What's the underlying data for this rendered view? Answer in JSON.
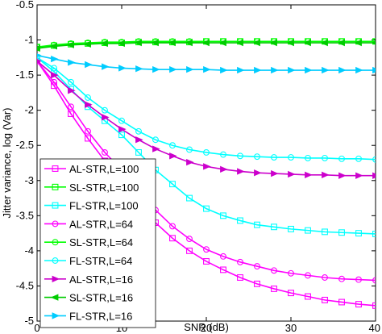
{
  "chart_data": {
    "type": "line",
    "xlabel": "SNR (dB)",
    "ylabel": "Jitter variance, log (Var)",
    "xlim": [
      0,
      40
    ],
    "ylim": [
      -5,
      -0.5
    ],
    "xticks": [
      0,
      10,
      20,
      30,
      40
    ],
    "yticks": [
      -0.5,
      -1,
      -1.5,
      -2,
      -2.5,
      -3,
      -3.5,
      -4,
      -4.5,
      -5
    ],
    "grid": false,
    "legend_position": "bottom-left",
    "x": [
      -1,
      0,
      2,
      4,
      6,
      8,
      10,
      12,
      14,
      16,
      18,
      20,
      22,
      24,
      26,
      28,
      30,
      32,
      34,
      36,
      38,
      40
    ],
    "series": [
      {
        "name": "AL-STR,L=100",
        "color": "#ff00ff",
        "marker": "square",
        "values": [
          -1.2,
          -1.3,
          -1.65,
          -2.05,
          -2.4,
          -2.72,
          -3.0,
          -3.3,
          -3.6,
          -3.82,
          -4.0,
          -4.15,
          -4.27,
          -4.38,
          -4.47,
          -4.54,
          -4.6,
          -4.65,
          -4.7,
          -4.73,
          -4.76,
          -4.78
        ]
      },
      {
        "name": "SL-STR,L=100",
        "color": "#00ff00",
        "marker": "square",
        "values": [
          -1.15,
          -1.1,
          -1.08,
          -1.06,
          -1.05,
          -1.04,
          -1.04,
          -1.03,
          -1.03,
          -1.03,
          -1.03,
          -1.02,
          -1.02,
          -1.02,
          -1.02,
          -1.02,
          -1.02,
          -1.02,
          -1.02,
          -1.02,
          -1.02,
          -1.02
        ]
      },
      {
        "name": "FL-STR,L=100",
        "color": "#00ffff",
        "marker": "square",
        "values": [
          -1.2,
          -1.25,
          -1.45,
          -1.7,
          -1.95,
          -2.15,
          -2.35,
          -2.6,
          -2.85,
          -3.05,
          -3.25,
          -3.4,
          -3.5,
          -3.57,
          -3.63,
          -3.66,
          -3.69,
          -3.71,
          -3.73,
          -3.74,
          -3.75,
          -3.76
        ]
      },
      {
        "name": "AL-STR,L=64",
        "color": "#ff00ff",
        "marker": "circle",
        "values": [
          -1.2,
          -1.3,
          -1.6,
          -1.95,
          -2.3,
          -2.6,
          -2.85,
          -3.1,
          -3.42,
          -3.65,
          -3.83,
          -3.98,
          -4.08,
          -4.16,
          -4.22,
          -4.28,
          -4.32,
          -4.35,
          -4.38,
          -4.4,
          -4.41,
          -4.42
        ]
      },
      {
        "name": "SL-STR,L=64",
        "color": "#00ff00",
        "marker": "circle",
        "values": [
          -1.15,
          -1.1,
          -1.07,
          -1.05,
          -1.04,
          -1.03,
          -1.03,
          -1.02,
          -1.02,
          -1.02,
          -1.02,
          -1.02,
          -1.02,
          -1.02,
          -1.02,
          -1.02,
          -1.02,
          -1.02,
          -1.02,
          -1.02,
          -1.02,
          -1.02
        ]
      },
      {
        "name": "FL-STR,L=64",
        "color": "#00ffff",
        "marker": "circle",
        "values": [
          -1.2,
          -1.25,
          -1.4,
          -1.6,
          -1.82,
          -2.0,
          -2.15,
          -2.3,
          -2.42,
          -2.5,
          -2.56,
          -2.6,
          -2.63,
          -2.65,
          -2.66,
          -2.67,
          -2.67,
          -2.68,
          -2.68,
          -2.69,
          -2.69,
          -2.7
        ]
      },
      {
        "name": "AL-STR,L=16",
        "color": "#cc00cc",
        "marker": "triangle-right",
        "values": [
          -1.2,
          -1.3,
          -1.5,
          -1.72,
          -1.92,
          -2.1,
          -2.27,
          -2.42,
          -2.55,
          -2.65,
          -2.74,
          -2.8,
          -2.84,
          -2.87,
          -2.89,
          -2.9,
          -2.91,
          -2.92,
          -2.92,
          -2.93,
          -2.93,
          -2.93
        ]
      },
      {
        "name": "SL-STR,L=16",
        "color": "#00cc00",
        "marker": "triangle-left",
        "values": [
          -1.15,
          -1.12,
          -1.09,
          -1.07,
          -1.06,
          -1.05,
          -1.05,
          -1.04,
          -1.04,
          -1.04,
          -1.04,
          -1.04,
          -1.04,
          -1.04,
          -1.04,
          -1.04,
          -1.04,
          -1.04,
          -1.04,
          -1.04,
          -1.04,
          -1.04
        ]
      },
      {
        "name": "FL-STR,L=16",
        "color": "#00ccff",
        "marker": "triangle-right",
        "values": [
          -1.2,
          -1.22,
          -1.27,
          -1.32,
          -1.35,
          -1.38,
          -1.4,
          -1.41,
          -1.42,
          -1.42,
          -1.42,
          -1.42,
          -1.43,
          -1.43,
          -1.43,
          -1.43,
          -1.43,
          -1.43,
          -1.43,
          -1.43,
          -1.43,
          -1.43
        ]
      }
    ]
  }
}
